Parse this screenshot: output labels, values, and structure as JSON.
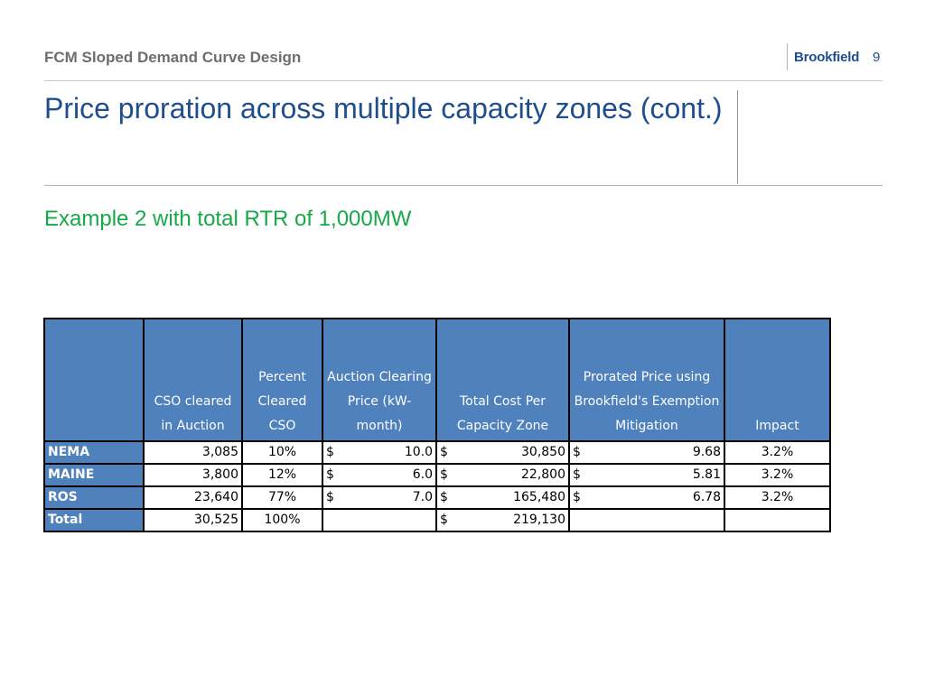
{
  "header": {
    "title": "FCM Sloped Demand Curve Design",
    "logo_text": "Brookfield",
    "page_number": "9"
  },
  "slide": {
    "title": "Price proration across multiple capacity zones (cont.)",
    "subtitle": "Example 2 with total RTR of 1,000MW"
  },
  "table": {
    "headers": [
      "",
      "CSO cleared in Auction",
      "Percent Cleared CSO",
      "Auction Clearing Price (kW-month)",
      "Total Cost Per Capacity Zone",
      "Prorated Price using Brookfield's Exemption Mitigation",
      "Impact"
    ],
    "rows": [
      {
        "zone": "NEMA",
        "cso": "3,085",
        "percent": "10%",
        "price_sym": "$",
        "price": "10.0",
        "cost_sym": "$",
        "cost": "30,850",
        "prorated_sym": "$",
        "prorated": "9.68",
        "impact": "3.2%"
      },
      {
        "zone": "MAINE",
        "cso": "3,800",
        "percent": "12%",
        "price_sym": "$",
        "price": "6.0",
        "cost_sym": "$",
        "cost": "22,800",
        "prorated_sym": "$",
        "prorated": "5.81",
        "impact": "3.2%"
      },
      {
        "zone": "ROS",
        "cso": "23,640",
        "percent": "77%",
        "price_sym": "$",
        "price": "7.0",
        "cost_sym": "$",
        "cost": "165,480",
        "prorated_sym": "$",
        "prorated": "6.78",
        "impact": "3.2%"
      }
    ],
    "total": {
      "zone": "Total",
      "cso": "30,525",
      "percent": "100%",
      "cost_sym": "$",
      "cost": "219,130"
    }
  },
  "colors": {
    "brand_blue": "#1f4e8c",
    "subtitle_green": "#17a84a",
    "table_header_blue": "#4f81bd"
  }
}
